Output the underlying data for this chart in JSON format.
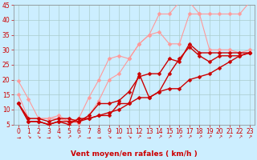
{
  "xlabel": "Vent moyen/en rafales ( km/h )",
  "bg_color": "#cceeff",
  "grid_color": "#aacccc",
  "xlim": [
    -0.5,
    23.5
  ],
  "ylim": [
    5,
    45
  ],
  "yticks": [
    5,
    10,
    15,
    20,
    25,
    30,
    35,
    40,
    45
  ],
  "xticks": [
    0,
    1,
    2,
    3,
    4,
    5,
    6,
    7,
    8,
    9,
    10,
    11,
    12,
    13,
    14,
    15,
    16,
    17,
    18,
    19,
    20,
    21,
    22,
    23
  ],
  "lines": [
    {
      "x": [
        0,
        1,
        2,
        3,
        4,
        5,
        6,
        7,
        8,
        9,
        10,
        11,
        12,
        13,
        14,
        15,
        16,
        17,
        18,
        19,
        20,
        21,
        22,
        23
      ],
      "y": [
        19.5,
        13.5,
        7,
        7,
        7,
        6,
        5.5,
        8,
        13,
        20,
        22,
        27,
        32,
        35,
        42,
        42,
        46,
        46,
        42,
        42,
        42,
        42,
        42,
        46
      ],
      "color": "#ff9999",
      "lw": 0.8,
      "ms": 2.5
    },
    {
      "x": [
        0,
        1,
        2,
        3,
        4,
        5,
        6,
        7,
        8,
        9,
        10,
        11,
        12,
        13,
        14,
        15,
        16,
        17,
        18,
        19,
        20,
        21,
        22,
        23
      ],
      "y": [
        15,
        7,
        7,
        7,
        8,
        6,
        7,
        14,
        20,
        27,
        28,
        27,
        32,
        35,
        36,
        32,
        32,
        42,
        42,
        30,
        30,
        30,
        29,
        30
      ],
      "color": "#ff9999",
      "lw": 0.8,
      "ms": 2.5
    },
    {
      "x": [
        0,
        1,
        2,
        3,
        4,
        5,
        6,
        7,
        8,
        9,
        10,
        11,
        12,
        13,
        14,
        15,
        16,
        17,
        18,
        19,
        20,
        21,
        22,
        23
      ],
      "y": [
        12,
        7,
        7,
        6,
        7,
        7,
        6,
        8,
        12,
        12,
        13,
        16,
        21,
        22,
        22,
        27,
        26,
        32,
        29,
        29,
        29,
        29,
        29,
        29
      ],
      "color": "#cc0000",
      "lw": 1.0,
      "ms": 2.5
    },
    {
      "x": [
        0,
        1,
        2,
        3,
        4,
        5,
        6,
        7,
        8,
        9,
        10,
        11,
        12,
        13,
        14,
        15,
        16,
        17,
        18,
        19,
        20,
        21,
        22,
        23
      ],
      "y": [
        12,
        6,
        6,
        5,
        6,
        5,
        7,
        7,
        8,
        8,
        12,
        12,
        22,
        14,
        16,
        22,
        27,
        31,
        28,
        26,
        28,
        28,
        28,
        29
      ],
      "color": "#cc0000",
      "lw": 1.0,
      "ms": 2.5
    },
    {
      "x": [
        0,
        1,
        2,
        3,
        4,
        5,
        6,
        7,
        8,
        9,
        10,
        11,
        12,
        13,
        14,
        15,
        16,
        17,
        18,
        19,
        20,
        21,
        22,
        23
      ],
      "y": [
        12,
        6,
        6,
        5,
        6,
        6,
        6,
        7,
        8,
        9,
        10,
        12,
        14,
        14,
        16,
        17,
        17,
        20,
        21,
        22,
        24,
        26,
        28,
        29
      ],
      "color": "#cc0000",
      "lw": 1.0,
      "ms": 2.5
    }
  ],
  "xlabel_fontsize": 6.5,
  "tick_fontsize": 5.5,
  "tick_color": "#cc0000",
  "arrow_chars": [
    "→",
    "↘",
    "↘",
    "→",
    "↘",
    "↗",
    "↗",
    "→",
    "→",
    "↘",
    "→",
    "↘",
    "↗",
    "→",
    "↗",
    "↗",
    "↗",
    "↗",
    "↗",
    "↗",
    "↗",
    "↗",
    "↗",
    "↗"
  ]
}
